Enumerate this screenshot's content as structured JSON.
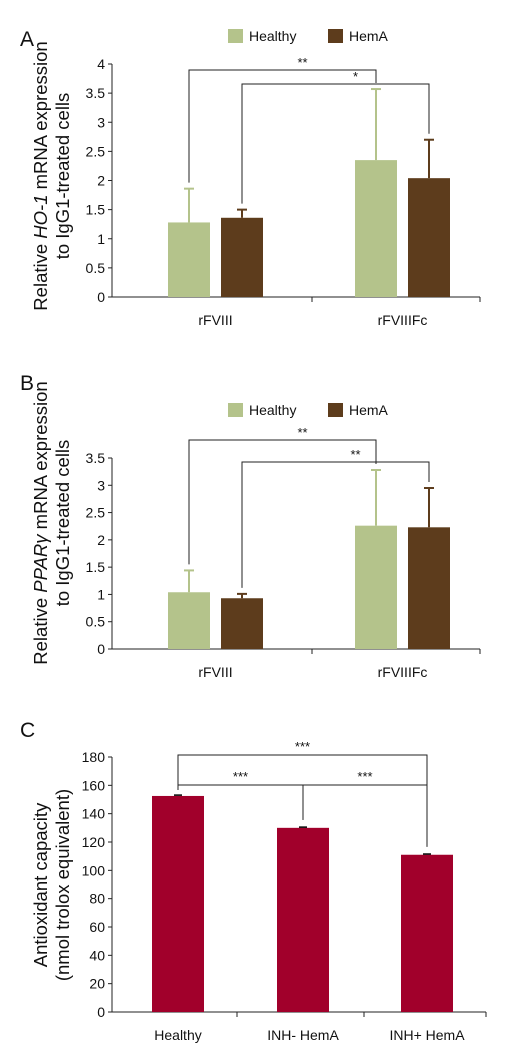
{
  "colors": {
    "healthy": "#b4c38b",
    "hema": "#5d3c1c",
    "bar_c": "#a1002b",
    "axis": "#222222"
  },
  "chart_data": [
    {
      "type": "bar",
      "panel_label": "A",
      "categories": [
        "rFVIII",
        "rFVIIIFc"
      ],
      "series": [
        {
          "name": "Healthy",
          "values": [
            1.28,
            2.35
          ],
          "errors": [
            0.58,
            1.22
          ]
        },
        {
          "name": "HemA",
          "values": [
            1.36,
            2.04
          ],
          "errors": [
            0.14,
            0.66
          ]
        }
      ],
      "ylabel_line1_pre": "Relative ",
      "ylabel_line1_gene": "HO-1",
      "ylabel_line1_post": " mRNA expression",
      "ylabel_line2": "to IgG1-treated cells",
      "ylim": [
        0,
        4
      ],
      "yticks": [
        "0",
        "0.5",
        "1",
        "1.5",
        "2",
        "2.5",
        "3",
        "3.5",
        "4"
      ],
      "legend": "top",
      "significance": [
        "**",
        "*"
      ]
    },
    {
      "type": "bar",
      "panel_label": "B",
      "categories": [
        "rFVIII",
        "rFVIIIFc"
      ],
      "series": [
        {
          "name": "Healthy",
          "values": [
            1.04,
            2.26
          ],
          "errors": [
            0.4,
            1.02
          ]
        },
        {
          "name": "HemA",
          "values": [
            0.93,
            2.23
          ],
          "errors": [
            0.08,
            0.72
          ]
        }
      ],
      "ylabel_line1_pre": "Relative ",
      "ylabel_line1_gene": "PPARγ",
      "ylabel_line1_post": " mRNA expression",
      "ylabel_line2": "to IgG1-treated cells",
      "ylim": [
        0,
        3.5
      ],
      "yticks": [
        "0",
        "0.5",
        "1",
        "1.5",
        "2",
        "2.5",
        "3",
        "3.5"
      ],
      "legend": "top",
      "significance": [
        "**",
        "**"
      ]
    },
    {
      "type": "bar",
      "panel_label": "C",
      "categories": [
        "Healthy",
        "INH- HemA",
        "INH+ HemA"
      ],
      "values": [
        152.5,
        130,
        111
      ],
      "errors": [
        0.6,
        0.5,
        0.5
      ],
      "ylabel_line1": "Antioxidant capacity",
      "ylabel_line2": "(nmol trolox equivalent)",
      "ylim": [
        0,
        180
      ],
      "yticks": [
        "0",
        "20",
        "40",
        "60",
        "80",
        "100",
        "120",
        "140",
        "160",
        "180"
      ],
      "significance": [
        "***",
        "***",
        "***"
      ]
    }
  ]
}
